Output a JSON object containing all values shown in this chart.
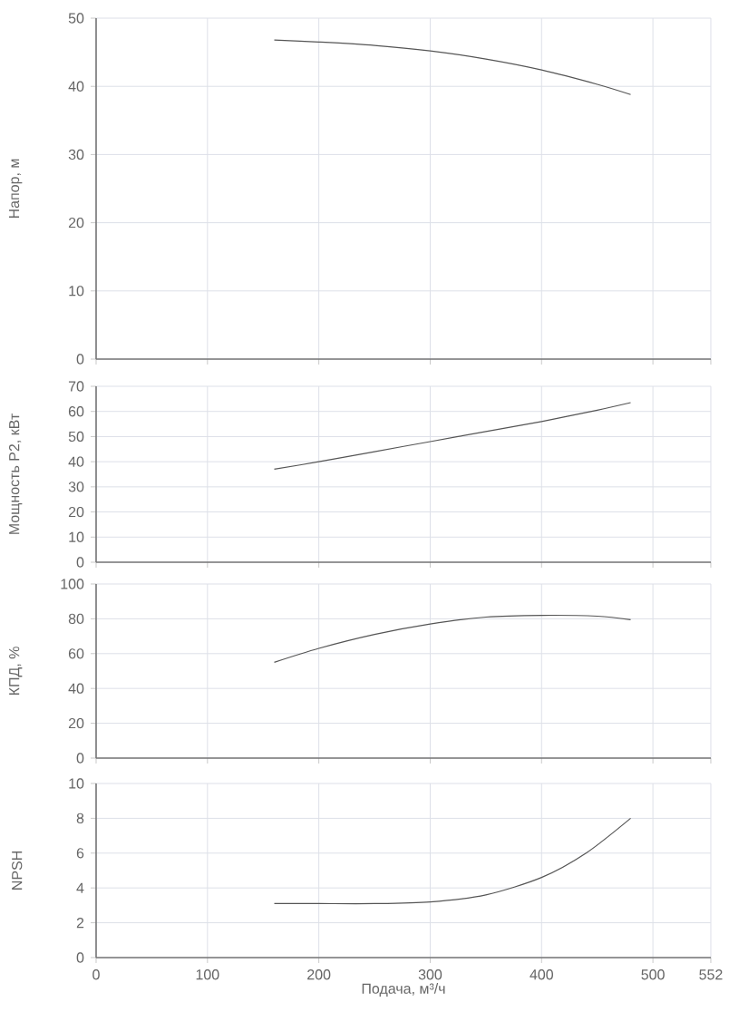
{
  "chart_data": [
    {
      "type": "line",
      "ylabel": "Напор, м",
      "color": "#555555",
      "grid": true,
      "tick_labels": "y",
      "x": [
        160,
        200,
        250,
        300,
        350,
        400,
        450,
        480
      ],
      "values": [
        46.8,
        46.5,
        46,
        45.2,
        44,
        42.4,
        40.3,
        38.8
      ],
      "xlim": [
        0,
        552
      ],
      "xticks": [
        0,
        100,
        200,
        300,
        400,
        500,
        552
      ],
      "ylim": [
        0,
        50
      ],
      "yticks": [
        0,
        10,
        20,
        30,
        40,
        50
      ]
    },
    {
      "type": "line",
      "ylabel": "Мощность P2, кВт",
      "color": "#555555",
      "grid": true,
      "tick_labels": "y",
      "x": [
        160,
        200,
        250,
        300,
        350,
        400,
        450,
        480
      ],
      "values": [
        37,
        40,
        44,
        48,
        52,
        56,
        60.5,
        63.5
      ],
      "xlim": [
        0,
        552
      ],
      "xticks": [
        0,
        100,
        200,
        300,
        400,
        500,
        552
      ],
      "ylim": [
        0,
        70
      ],
      "yticks": [
        0,
        10,
        20,
        30,
        40,
        50,
        60,
        70
      ]
    },
    {
      "type": "line",
      "ylabel": "КПД, %",
      "color": "#555555",
      "grid": true,
      "tick_labels": "y",
      "x": [
        160,
        200,
        250,
        300,
        350,
        400,
        450,
        480
      ],
      "values": [
        55,
        63,
        71,
        77,
        81,
        82,
        81.5,
        79.5
      ],
      "xlim": [
        0,
        552
      ],
      "xticks": [
        0,
        100,
        200,
        300,
        400,
        500,
        552
      ],
      "ylim": [
        0,
        100
      ],
      "yticks": [
        0,
        20,
        40,
        60,
        80,
        100
      ]
    },
    {
      "type": "line",
      "ylabel": "NPSH",
      "xlabel": "Подача, м³/ч",
      "color": "#555555",
      "grid": true,
      "x": [
        160,
        200,
        250,
        300,
        350,
        400,
        440,
        480
      ],
      "values": [
        3.1,
        3.1,
        3.1,
        3.2,
        3.6,
        4.6,
        6,
        8
      ],
      "xlim": [
        0,
        552
      ],
      "xticks": [
        0,
        100,
        200,
        300,
        400,
        500,
        552
      ],
      "ylim": [
        0,
        10
      ],
      "yticks": [
        0,
        2,
        4,
        6,
        8,
        10
      ]
    }
  ]
}
